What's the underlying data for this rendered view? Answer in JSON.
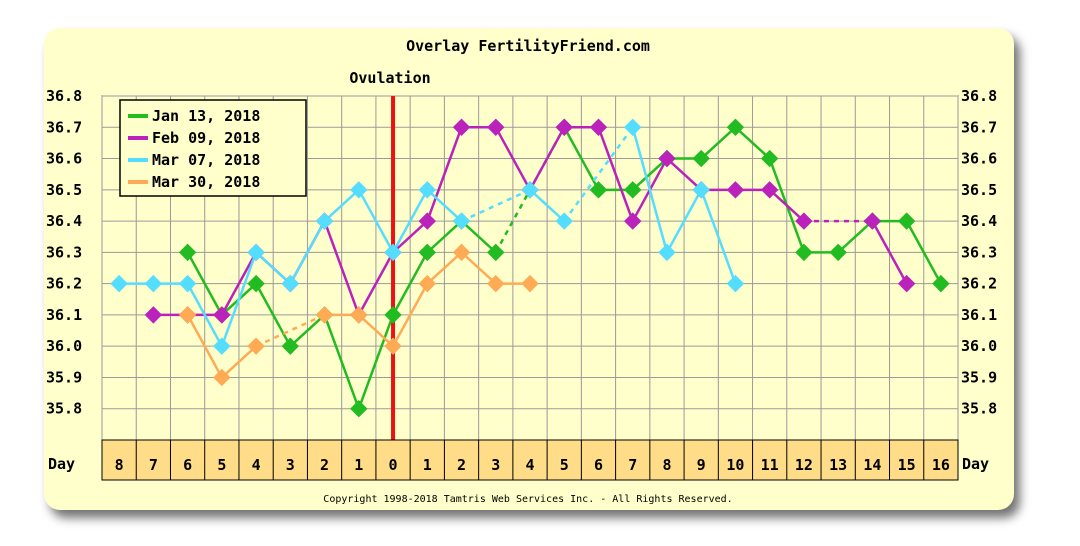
{
  "chart_data": {
    "type": "line",
    "title": "Overlay FertilityFriend.com",
    "annotation": "Ovulation",
    "xlabel": "Day",
    "copyright": "Copyright 1998-2018 Tamtris Web Services Inc. - All Rights Reserved.",
    "x": [
      "8",
      "7",
      "6",
      "5",
      "4",
      "3",
      "2",
      "1",
      "0",
      "1",
      "2",
      "3",
      "4",
      "5",
      "6",
      "7",
      "8",
      "9",
      "10",
      "11",
      "12",
      "13",
      "14",
      "15",
      "16"
    ],
    "ovulation_index": 8,
    "ylim": [
      35.7,
      36.8
    ],
    "yticks": [
      "36.8",
      "36.7",
      "36.6",
      "36.5",
      "36.4",
      "36.3",
      "36.2",
      "36.1",
      "36.0",
      "35.9",
      "35.8"
    ],
    "grid": true,
    "legend_position": "top-left",
    "series": [
      {
        "name": "Jan 13, 2018",
        "color": "#22bb22",
        "values": [
          null,
          null,
          36.3,
          36.1,
          36.2,
          36.0,
          36.1,
          35.8,
          36.1,
          36.3,
          36.4,
          36.3,
          null,
          36.7,
          36.5,
          36.5,
          36.6,
          36.6,
          36.7,
          36.6,
          36.3,
          36.3,
          36.4,
          36.4,
          36.2
        ]
      },
      {
        "name": "Feb 09, 2018",
        "color": "#bb22bb",
        "values": [
          null,
          36.1,
          36.1,
          36.1,
          36.3,
          36.2,
          36.4,
          36.1,
          36.3,
          36.4,
          36.7,
          36.7,
          36.5,
          36.7,
          36.7,
          36.4,
          36.6,
          36.5,
          36.5,
          36.5,
          36.4,
          null,
          36.4,
          36.2,
          null
        ]
      },
      {
        "name": "Mar 07, 2018",
        "color": "#55ddff",
        "values": [
          36.2,
          36.2,
          36.2,
          36.0,
          36.3,
          36.2,
          36.4,
          36.5,
          36.3,
          36.5,
          36.4,
          null,
          36.5,
          36.4,
          null,
          36.7,
          36.3,
          36.5,
          36.2,
          null,
          null,
          null,
          null,
          null,
          null
        ]
      },
      {
        "name": "Mar 30, 2018",
        "color": "#ffaa55",
        "values": [
          null,
          null,
          36.1,
          35.9,
          36.0,
          null,
          36.1,
          36.1,
          36.0,
          36.2,
          36.3,
          36.2,
          36.2,
          null,
          null,
          null,
          null,
          null,
          null,
          null,
          null,
          null,
          null,
          null,
          null
        ]
      }
    ]
  }
}
